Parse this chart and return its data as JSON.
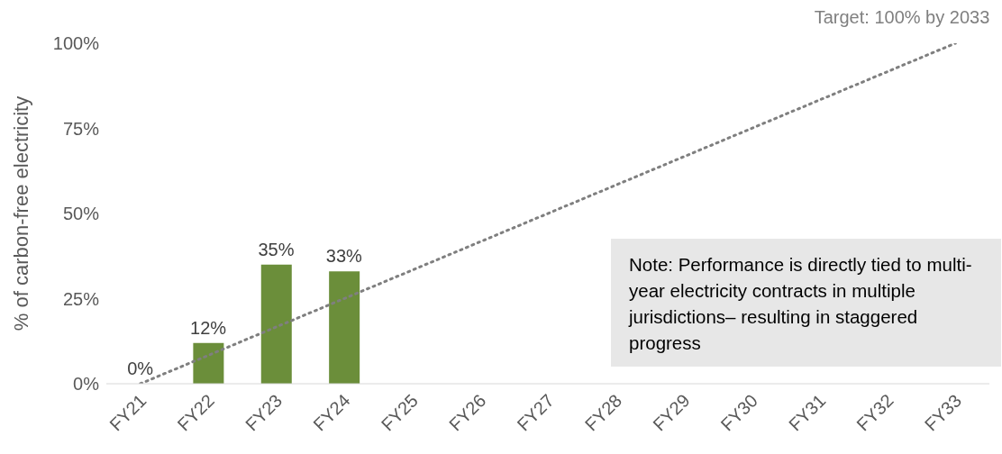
{
  "chart_data": {
    "type": "bar",
    "ylabel": "% of carbon-free electricity",
    "categories": [
      "FY21",
      "FY22",
      "FY23",
      "FY24",
      "FY25",
      "FY26",
      "FY27",
      "FY28",
      "FY29",
      "FY30",
      "FY31",
      "FY32",
      "FY33"
    ],
    "series": [
      {
        "color": "#6b8e3a",
        "values": [
          0,
          12,
          35,
          33,
          null,
          null,
          null,
          null,
          null,
          null,
          null,
          null,
          null
        ],
        "value_labels": [
          "0%",
          "12%",
          "35%",
          "33%",
          null,
          null,
          null,
          null,
          null,
          null,
          null,
          null,
          null
        ]
      },
      {
        "type": "line",
        "color": "#7f7f7f",
        "line_style": "dotted",
        "x": [
          "FY21",
          "FY33"
        ],
        "values": [
          0,
          100
        ]
      }
    ],
    "ylim": [
      0,
      100
    ],
    "yticks": [
      {
        "value": 0,
        "label": "0%"
      },
      {
        "value": 25,
        "label": "25%"
      },
      {
        "value": 50,
        "label": "50%"
      },
      {
        "value": 75,
        "label": "75%"
      },
      {
        "value": 100,
        "label": "100%"
      }
    ],
    "grid": false,
    "legend": false,
    "annotations": [
      {
        "text": "Target: 100% by 2033",
        "x": "FY33",
        "y": 100
      },
      "Note: Performance is directly tied to multi-year electricity contracts in multiple jurisdictions– resulting in staggered progress"
    ]
  }
}
